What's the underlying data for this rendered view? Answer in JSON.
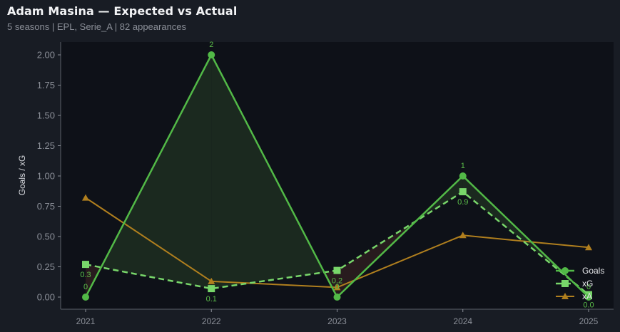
{
  "header": {
    "title": "Adam Masina — Expected vs Actual",
    "subtitle": "5 seasons | EPL, Serie_A | 82 appearances"
  },
  "colors": {
    "background": "#181c24",
    "plot_background": "#0e1118",
    "goals": "#52b947",
    "xg": "#78d66a",
    "xa": "#b07f1e",
    "over_fill": "#1c2b20",
    "under_fill": "#2a1c1f"
  },
  "chart_data": {
    "type": "line",
    "title": "Adam Masina — Expected vs Actual",
    "subtitle": "5 seasons | EPL, Serie_A | 82 appearances",
    "xlabel": "",
    "ylabel": "Goals / xG",
    "categories": [
      "2021",
      "2022",
      "2023",
      "2024",
      "2025"
    ],
    "ylim": [
      -0.1,
      2.1
    ],
    "yticks": [
      "0.00",
      "0.25",
      "0.50",
      "0.75",
      "1.00",
      "1.25",
      "1.50",
      "1.75",
      "2.00"
    ],
    "grid": false,
    "legend_position": "lower right",
    "series": [
      {
        "name": "Goals",
        "marker": "circle",
        "style": "solid",
        "values": [
          0,
          2,
          0,
          1,
          0
        ],
        "labels": [
          "0",
          "2",
          "0",
          "1",
          "0"
        ]
      },
      {
        "name": "xG",
        "marker": "square",
        "style": "dashed",
        "values": [
          0.27,
          0.07,
          0.22,
          0.87,
          0.02
        ],
        "labels": [
          "0.3",
          "0.1",
          "0.2",
          "0.9",
          "0.0"
        ]
      },
      {
        "name": "xA",
        "marker": "triangle",
        "style": "solid",
        "values": [
          0.82,
          0.13,
          0.08,
          0.51,
          0.41
        ]
      }
    ]
  },
  "legend": {
    "items": [
      {
        "label": "Goals"
      },
      {
        "label": "xG"
      },
      {
        "label": "xA"
      }
    ]
  }
}
